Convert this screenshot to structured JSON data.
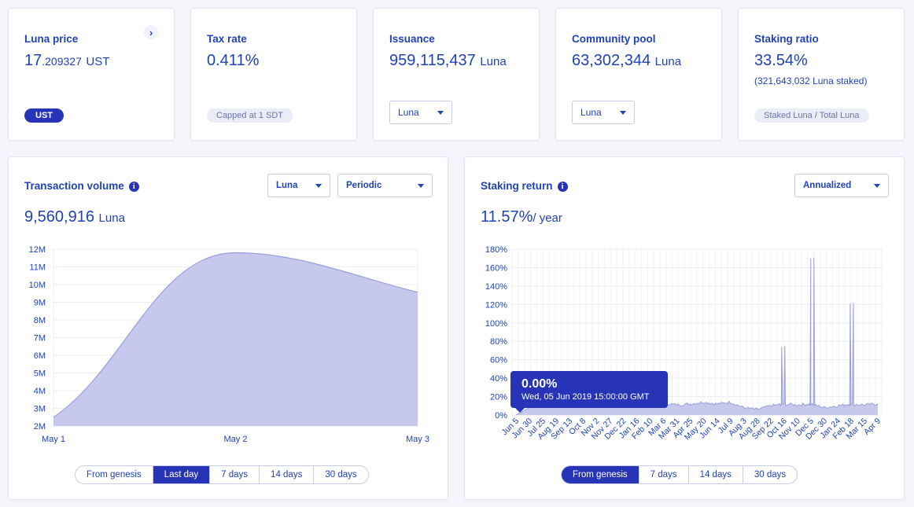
{
  "cards": {
    "luna_price": {
      "title": "Luna price",
      "value_main": "17",
      "value_decimal": ".209327",
      "unit": "UST",
      "badge": "UST"
    },
    "tax_rate": {
      "title": "Tax rate",
      "value": "0.411%",
      "badge": "Capped at 1 SDT"
    },
    "issuance": {
      "title": "Issuance",
      "value": "959,115,437",
      "unit": "Luna",
      "select": "Luna"
    },
    "community_pool": {
      "title": "Community pool",
      "value": "63,302,344",
      "unit": "Luna",
      "select": "Luna"
    },
    "staking_ratio": {
      "title": "Staking ratio",
      "value": "33.54%",
      "sub": "(321,643,032 Luna staked)",
      "badge": "Staked Luna / Total Luna"
    }
  },
  "tx_volume": {
    "title": "Transaction volume",
    "select_denom": "Luna",
    "select_mode": "Periodic",
    "value": "9,560,916",
    "unit": "Luna",
    "tabs": [
      "From genesis",
      "Last day",
      "7 days",
      "14 days",
      "30 days"
    ],
    "active_tab": 1
  },
  "staking_return": {
    "title": "Staking return",
    "select_mode": "Annualized",
    "value": "11.57%",
    "unit": "/ year",
    "tooltip_value": "0.00%",
    "tooltip_date": "Wed, 05 Jun 2019 15:00:00 GMT",
    "tabs": [
      "From genesis",
      "7 days",
      "14 days",
      "30 days"
    ],
    "active_tab": 0
  },
  "colors": {
    "accent": "#2834b8",
    "text": "#2043b5",
    "area_fill": "#c7c9ec",
    "area_stroke": "#9a9fdc"
  },
  "chart_data": [
    {
      "type": "area",
      "title": "",
      "x": [
        "May 1",
        "May 2",
        "May 3"
      ],
      "y": [
        2500000,
        11800000,
        9560916
      ],
      "ylim": [
        2000000,
        12000000
      ],
      "yticks": [
        "2M",
        "3M",
        "4M",
        "5M",
        "6M",
        "7M",
        "8M",
        "9M",
        "10M",
        "11M",
        "12M"
      ],
      "grid": true
    },
    {
      "type": "area",
      "title": "",
      "x": [
        "Jun 5",
        "Jun 30",
        "Jul 25",
        "Aug 19",
        "Sep 13",
        "Oct 8",
        "Nov 2",
        "Nov 27",
        "Dec 22",
        "Jan 16",
        "Feb 10",
        "Mar 6",
        "Mar 31",
        "Apr 25",
        "May 20",
        "Jun 14",
        "Jul 9",
        "Aug 3",
        "Aug 28",
        "Sep 22",
        "Oct 16",
        "Nov 10",
        "Dec 5",
        "Dec 30",
        "Jan 24",
        "Feb 18",
        "Mar 15",
        "Apr 9"
      ],
      "y": [
        0,
        8,
        12,
        13,
        12,
        12,
        12,
        13,
        12,
        12,
        12,
        13,
        11,
        12,
        14,
        12,
        14,
        8,
        6,
        10,
        12,
        11,
        12,
        8,
        10,
        12,
        11,
        12
      ],
      "ylim": [
        0,
        180
      ],
      "yticks": [
        "0%",
        "20%",
        "40%",
        "60%",
        "80%",
        "100%",
        "120%",
        "140%",
        "160%",
        "180%"
      ],
      "spikes": [
        {
          "near": "Oct 16",
          "value": 74
        },
        {
          "near": "Nov 10",
          "value": 170
        },
        {
          "near": "Feb 18",
          "value": 121
        }
      ],
      "grid": true
    }
  ]
}
